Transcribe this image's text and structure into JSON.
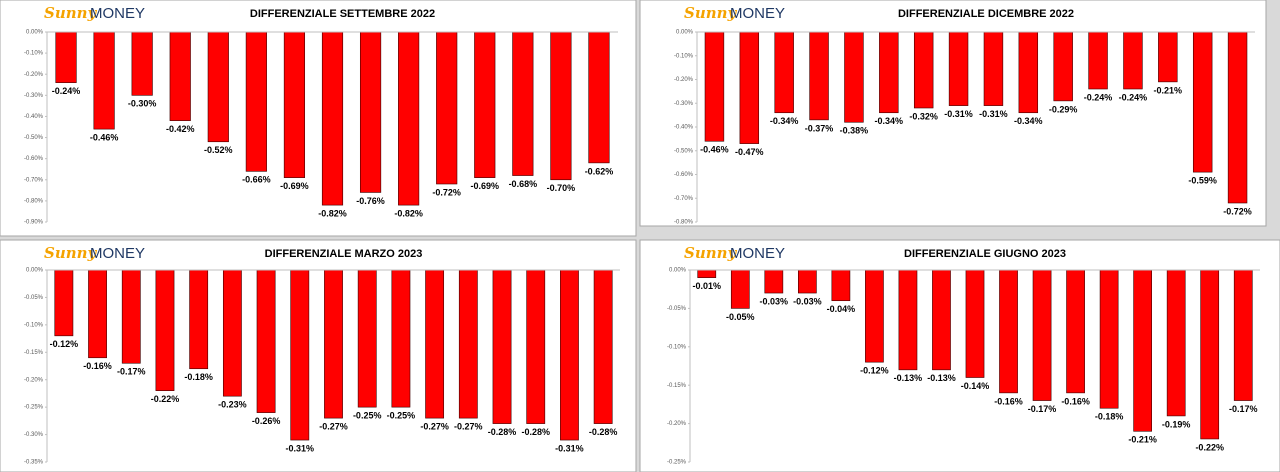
{
  "logo": {
    "script": "Sunny",
    "word": "MONEY"
  },
  "chart_data": [
    {
      "type": "bar",
      "title": "DIFFERENZIALE SETTEMBRE 2022",
      "color": "#ff0000",
      "categories": [
        null,
        null,
        null,
        null,
        null,
        null,
        null,
        null,
        null,
        null,
        null,
        null,
        null,
        null,
        null
      ],
      "values": [
        -0.24,
        -0.46,
        -0.3,
        -0.42,
        -0.52,
        -0.66,
        -0.69,
        -0.82,
        -0.76,
        -0.82,
        -0.72,
        -0.69,
        -0.68,
        -0.7,
        -0.62
      ],
      "value_labels": [
        "-0.24%",
        "-0.46%",
        "-0.30%",
        "-0.42%",
        "-0.52%",
        "-0.66%",
        "-0.69%",
        "-0.82%",
        "-0.76%",
        "-0.82%",
        "-0.72%",
        "-0.69%",
        "-0.68%",
        "-0.70%",
        "-0.62%"
      ],
      "ylim": [
        -0.9,
        0
      ],
      "yticks": [
        {
          "value": 0,
          "label": "0.00%"
        },
        {
          "value": -0.1,
          "label": "-0.10%"
        },
        {
          "value": -0.2,
          "label": "-0.20%"
        },
        {
          "value": -0.3,
          "label": "-0.30%"
        },
        {
          "value": -0.4,
          "label": "-0.40%"
        },
        {
          "value": -0.5,
          "label": "-0.50%"
        },
        {
          "value": -0.6,
          "label": "-0.60%"
        },
        {
          "value": -0.7,
          "label": "-0.70%"
        },
        {
          "value": -0.8,
          "label": "-0.80%"
        },
        {
          "value": -0.9,
          "label": "-0.90%"
        }
      ]
    },
    {
      "type": "bar",
      "title": "DIFFERENZIALE DICEMBRE 2022",
      "color": "#ff0000",
      "categories": [
        null,
        null,
        null,
        null,
        null,
        null,
        null,
        null,
        null,
        null,
        null,
        null,
        null,
        null,
        null,
        null
      ],
      "values": [
        -0.46,
        -0.47,
        -0.34,
        -0.37,
        -0.38,
        -0.34,
        -0.32,
        -0.31,
        -0.31,
        -0.34,
        -0.29,
        -0.24,
        -0.24,
        -0.21,
        -0.59,
        -0.72
      ],
      "value_labels": [
        "-0.46%",
        "-0.47%",
        "-0.34%",
        "-0.37%",
        "-0.38%",
        "-0.34%",
        "-0.32%",
        "-0.31%",
        "-0.31%",
        "-0.34%",
        "-0.29%",
        "-0.24%",
        "-0.24%",
        "-0.21%",
        "-0.59%",
        "-0.72%"
      ],
      "ylim": [
        -0.8,
        0
      ],
      "yticks": [
        {
          "value": 0,
          "label": "0.00%"
        },
        {
          "value": -0.1,
          "label": "-0.10%"
        },
        {
          "value": -0.2,
          "label": "-0.20%"
        },
        {
          "value": -0.3,
          "label": "-0.30%"
        },
        {
          "value": -0.4,
          "label": "-0.40%"
        },
        {
          "value": -0.5,
          "label": "-0.50%"
        },
        {
          "value": -0.6,
          "label": "-0.60%"
        },
        {
          "value": -0.7,
          "label": "-0.70%"
        },
        {
          "value": -0.8,
          "label": "-0.80%"
        }
      ]
    },
    {
      "type": "bar",
      "title": "DIFFERENZIALE MARZO 2023",
      "color": "#ff0000",
      "categories": [
        null,
        null,
        null,
        null,
        null,
        null,
        null,
        null,
        null,
        null,
        null,
        null,
        null,
        null,
        null,
        null,
        null
      ],
      "values": [
        -0.12,
        -0.16,
        -0.17,
        -0.22,
        -0.18,
        -0.23,
        -0.26,
        -0.31,
        -0.27,
        -0.25,
        -0.25,
        -0.27,
        -0.27,
        -0.28,
        -0.28,
        -0.31,
        -0.28
      ],
      "value_labels": [
        "-0.12%",
        "-0.16%",
        "-0.17%",
        "-0.22%",
        "-0.18%",
        "-0.23%",
        "-0.26%",
        "-0.31%",
        "-0.27%",
        "-0.25%",
        "-0.25%",
        "-0.27%",
        "-0.27%",
        "-0.28%",
        "-0.28%",
        "-0.31%",
        "-0.28%"
      ],
      "ylim": [
        -0.35,
        0
      ],
      "yticks": [
        {
          "value": 0,
          "label": "0.00%"
        },
        {
          "value": -0.05,
          "label": "-0.05%"
        },
        {
          "value": -0.1,
          "label": "-0.10%"
        },
        {
          "value": -0.15,
          "label": "-0.15%"
        },
        {
          "value": -0.2,
          "label": "-0.20%"
        },
        {
          "value": -0.25,
          "label": "-0.25%"
        },
        {
          "value": -0.3,
          "label": "-0.30%"
        },
        {
          "value": -0.35,
          "label": "-0.35%"
        }
      ]
    },
    {
      "type": "bar",
      "title": "DIFFERENZIALE GIUGNO 2023",
      "color": "#ff0000",
      "categories": [
        null,
        null,
        null,
        null,
        null,
        null,
        null,
        null,
        null,
        null,
        null,
        null,
        null,
        null,
        null,
        null,
        null
      ],
      "values": [
        -0.01,
        -0.05,
        -0.03,
        -0.03,
        -0.04,
        -0.12,
        -0.13,
        -0.13,
        -0.14,
        -0.16,
        -0.17,
        -0.16,
        -0.18,
        -0.21,
        -0.19,
        -0.22,
        -0.17
      ],
      "value_labels": [
        "-0.01%",
        "-0.05%",
        "-0.03%",
        "-0.03%",
        "-0.04%",
        "-0.12%",
        "-0.13%",
        "-0.13%",
        "-0.14%",
        "-0.16%",
        "-0.17%",
        "-0.16%",
        "-0.18%",
        "-0.21%",
        "-0.19%",
        "-0.22%",
        "-0.17%"
      ],
      "ylim": [
        -0.25,
        0
      ],
      "yticks": [
        {
          "value": 0,
          "label": "0.00%"
        },
        {
          "value": -0.05,
          "label": "-0.05%"
        },
        {
          "value": -0.1,
          "label": "-0.10%"
        },
        {
          "value": -0.15,
          "label": "-0.15%"
        },
        {
          "value": -0.2,
          "label": "-0.20%"
        },
        {
          "value": -0.25,
          "label": "-0.25%"
        }
      ]
    }
  ]
}
